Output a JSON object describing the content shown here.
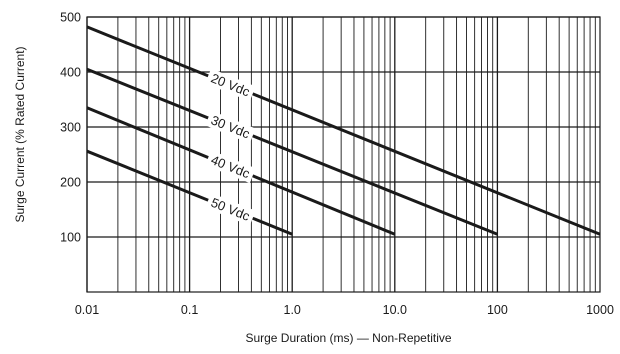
{
  "chart_data": {
    "type": "line",
    "title": "",
    "xlabel": "Surge Duration (ms) — Non-Repetitive",
    "ylabel": "Surge Current (% Rated Current)",
    "xscale": "log",
    "xlim": [
      0.01,
      1000
    ],
    "ylim": [
      0,
      500
    ],
    "x_ticks": [
      {
        "value": 0.01,
        "label": "0.01"
      },
      {
        "value": 0.1,
        "label": "0.1"
      },
      {
        "value": 1,
        "label": "1.0"
      },
      {
        "value": 10,
        "label": "10.0"
      },
      {
        "value": 100,
        "label": "100"
      },
      {
        "value": 1000,
        "label": "1000"
      }
    ],
    "y_ticks": [
      {
        "value": 100,
        "label": "100"
      },
      {
        "value": 200,
        "label": "200"
      },
      {
        "value": 300,
        "label": "300"
      },
      {
        "value": 400,
        "label": "400"
      },
      {
        "value": 500,
        "label": "500"
      }
    ],
    "grid": true,
    "legend": "none",
    "colors": {
      "line": "#1a1a1a",
      "grid": "#1a1a1a",
      "label_bg": "#ffffff"
    },
    "series": [
      {
        "name": "20 Vdc",
        "x": [
          0.01,
          1000
        ],
        "y": [
          482,
          105
        ],
        "label_at": 0.25
      },
      {
        "name": "30 Vdc",
        "x": [
          0.01,
          100
        ],
        "y": [
          405,
          105
        ],
        "label_at": 0.25
      },
      {
        "name": "40 Vdc",
        "x": [
          0.01,
          10
        ],
        "y": [
          335,
          105
        ],
        "label_at": 0.25
      },
      {
        "name": "50 Vdc",
        "x": [
          0.01,
          1
        ],
        "y": [
          256,
          105
        ],
        "label_at": 0.25
      }
    ]
  }
}
